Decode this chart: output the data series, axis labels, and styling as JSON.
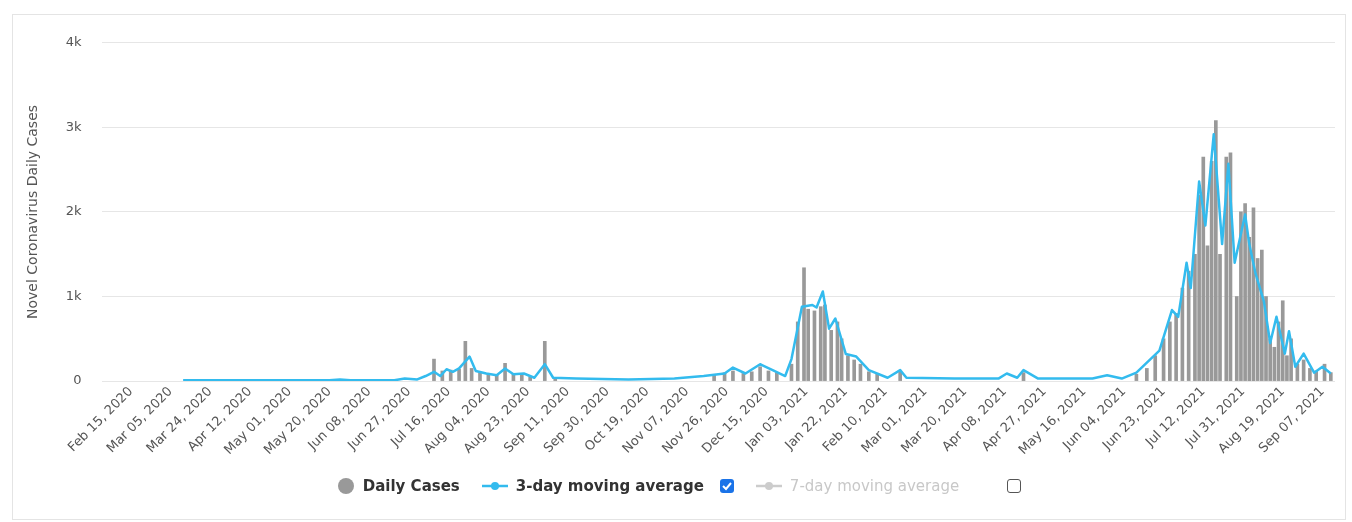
{
  "chart_data": {
    "type": "bar",
    "ylabel": "Novel Coronavirus Daily Cases",
    "xlim": [
      "2020-02-01",
      "2021-09-13"
    ],
    "xticks": [
      {
        "value": "2020-02-15",
        "label": "Feb 15, 2020"
      },
      {
        "value": "2020-03-05",
        "label": "Mar 05, 2020"
      },
      {
        "value": "2020-03-24",
        "label": "Mar 24, 2020"
      },
      {
        "value": "2020-04-12",
        "label": "Apr 12, 2020"
      },
      {
        "value": "2020-05-01",
        "label": "May 01, 2020"
      },
      {
        "value": "2020-05-20",
        "label": "May 20, 2020"
      },
      {
        "value": "2020-06-08",
        "label": "Jun 08, 2020"
      },
      {
        "value": "2020-06-27",
        "label": "Jun 27, 2020"
      },
      {
        "value": "2020-07-16",
        "label": "Jul 16, 2020"
      },
      {
        "value": "2020-08-04",
        "label": "Aug 04, 2020"
      },
      {
        "value": "2020-08-23",
        "label": "Aug 23, 2020"
      },
      {
        "value": "2020-09-11",
        "label": "Sep 11, 2020"
      },
      {
        "value": "2020-09-30",
        "label": "Sep 30, 2020"
      },
      {
        "value": "2020-10-19",
        "label": "Oct 19, 2020"
      },
      {
        "value": "2020-11-07",
        "label": "Nov 07, 2020"
      },
      {
        "value": "2020-11-26",
        "label": "Nov 26, 2020"
      },
      {
        "value": "2020-12-15",
        "label": "Dec 15, 2020"
      },
      {
        "value": "2021-01-03",
        "label": "Jan 03, 2021"
      },
      {
        "value": "2021-01-22",
        "label": "Jan 22, 2021"
      },
      {
        "value": "2021-02-10",
        "label": "Feb 10, 2021"
      },
      {
        "value": "2021-03-01",
        "label": "Mar 01, 2021"
      },
      {
        "value": "2021-03-20",
        "label": "Mar 20, 2021"
      },
      {
        "value": "2021-04-08",
        "label": "Apr 08, 2021"
      },
      {
        "value": "2021-04-27",
        "label": "Apr 27, 2021"
      },
      {
        "value": "2021-05-16",
        "label": "May 16, 2021"
      },
      {
        "value": "2021-06-04",
        "label": "Jun 04, 2021"
      },
      {
        "value": "2021-06-23",
        "label": "Jun 23, 2021"
      },
      {
        "value": "2021-07-12",
        "label": "Jul 12, 2021"
      },
      {
        "value": "2021-07-31",
        "label": "Jul 31, 2021"
      },
      {
        "value": "2021-08-19",
        "label": "Aug 19, 2021"
      },
      {
        "value": "2021-09-07",
        "label": "Sep 07, 2021"
      }
    ],
    "ylim": [
      0,
      4000
    ],
    "yticks": [
      0,
      {
        "value": 1000,
        "label": "1k"
      },
      {
        "value": 2000,
        "label": "2k"
      },
      {
        "value": 3000,
        "label": "3k"
      },
      {
        "value": 4000,
        "label": "4k"
      }
    ],
    "grid": "y",
    "legend": "bottom",
    "marker": "none",
    "series": [
      {
        "name": "Daily Cases",
        "color": "#999999",
        "x": [
          "2020-07-09",
          "2020-07-13",
          "2020-07-17",
          "2020-07-21",
          "2020-07-24",
          "2020-07-27",
          "2020-07-31",
          "2020-08-04",
          "2020-08-08",
          "2020-08-12",
          "2020-08-16",
          "2020-08-20",
          "2020-08-24",
          "2020-08-31",
          "2020-09-05",
          "2020-11-20",
          "2020-11-25",
          "2020-11-29",
          "2020-12-04",
          "2020-12-08",
          "2020-12-12",
          "2020-12-16",
          "2020-12-20",
          "2020-12-27",
          "2020-12-30",
          "2021-01-02",
          "2021-01-04",
          "2021-01-07",
          "2021-01-10",
          "2021-01-12",
          "2021-01-15",
          "2021-01-18",
          "2021-01-20",
          "2021-01-23",
          "2021-01-26",
          "2021-01-29",
          "2021-02-02",
          "2021-02-06",
          "2021-02-17",
          "2021-04-17",
          "2021-06-10",
          "2021-06-15",
          "2021-06-19",
          "2021-06-23",
          "2021-06-26",
          "2021-06-29",
          "2021-07-02",
          "2021-07-05",
          "2021-07-08",
          "2021-07-10",
          "2021-07-12",
          "2021-07-14",
          "2021-07-16",
          "2021-07-18",
          "2021-07-20",
          "2021-07-23",
          "2021-07-25",
          "2021-07-28",
          "2021-07-30",
          "2021-08-01",
          "2021-08-03",
          "2021-08-05",
          "2021-08-07",
          "2021-08-09",
          "2021-08-11",
          "2021-08-13",
          "2021-08-15",
          "2021-08-17",
          "2021-08-19",
          "2021-08-21",
          "2021-08-23",
          "2021-08-26",
          "2021-08-29",
          "2021-09-01",
          "2021-09-04",
          "2021-09-08",
          "2021-09-11"
        ],
        "values": [
          260,
          120,
          130,
          140,
          470,
          150,
          100,
          90,
          80,
          210,
          90,
          80,
          50,
          470,
          30,
          80,
          100,
          120,
          90,
          110,
          170,
          120,
          100,
          200,
          700,
          1340,
          850,
          830,
          880,
          900,
          600,
          700,
          500,
          300,
          250,
          200,
          110,
          80,
          110,
          100,
          80,
          150,
          300,
          500,
          700,
          800,
          1100,
          1300,
          1500,
          2200,
          2650,
          1600,
          2600,
          3080,
          1500,
          2650,
          2700,
          1000,
          2000,
          2100,
          1700,
          2050,
          1450,
          1550,
          1000,
          500,
          400,
          700,
          950,
          300,
          500,
          200,
          250,
          150,
          120,
          200,
          100
        ]
      },
      {
        "name": "3-day moving average",
        "type": "line",
        "color": "#33bbee",
        "x": [
          "2020-03-11",
          "2020-04-15",
          "2020-05-20",
          "2020-05-25",
          "2020-05-30",
          "2020-06-20",
          "2020-06-25",
          "2020-07-01",
          "2020-07-05",
          "2020-07-09",
          "2020-07-12",
          "2020-07-15",
          "2020-07-18",
          "2020-07-21",
          "2020-07-26",
          "2020-07-29",
          "2020-08-03",
          "2020-08-08",
          "2020-08-12",
          "2020-08-16",
          "2020-08-21",
          "2020-08-26",
          "2020-08-31",
          "2020-09-04",
          "2020-09-15",
          "2020-10-10",
          "2020-11-01",
          "2020-11-15",
          "2020-11-25",
          "2020-11-29",
          "2020-12-05",
          "2020-12-12",
          "2020-12-18",
          "2020-12-24",
          "2020-12-27",
          "2021-01-01",
          "2021-01-06",
          "2021-01-08",
          "2021-01-11",
          "2021-01-14",
          "2021-01-17",
          "2021-01-22",
          "2021-01-27",
          "2021-02-02",
          "2021-02-11",
          "2021-02-17",
          "2021-02-20",
          "2021-03-15",
          "2021-04-05",
          "2021-04-09",
          "2021-04-14",
          "2021-04-17",
          "2021-04-24",
          "2021-05-20",
          "2021-05-27",
          "2021-06-03",
          "2021-06-10",
          "2021-06-21",
          "2021-06-27",
          "2021-06-30",
          "2021-07-04",
          "2021-07-06",
          "2021-07-10",
          "2021-07-13",
          "2021-07-17",
          "2021-07-21",
          "2021-07-24",
          "2021-07-27",
          "2021-08-01",
          "2021-08-03",
          "2021-08-06",
          "2021-08-10",
          "2021-08-13",
          "2021-08-16",
          "2021-08-20",
          "2021-08-22",
          "2021-08-25",
          "2021-08-29",
          "2021-09-03",
          "2021-09-07",
          "2021-09-11"
        ],
        "values": [
          10,
          10,
          10,
          20,
          10,
          10,
          30,
          20,
          60,
          110,
          60,
          140,
          110,
          150,
          290,
          120,
          90,
          70,
          150,
          80,
          90,
          40,
          200,
          40,
          30,
          20,
          30,
          60,
          90,
          160,
          90,
          200,
          130,
          60,
          260,
          880,
          900,
          870,
          1060,
          620,
          740,
          320,
          290,
          130,
          40,
          130,
          40,
          30,
          30,
          90,
          40,
          130,
          30,
          30,
          70,
          30,
          100,
          360,
          840,
          760,
          1400,
          1100,
          2360,
          1840,
          2920,
          1620,
          2570,
          1400,
          1970,
          1620,
          1270,
          940,
          450,
          760,
          325,
          590,
          170,
          325,
          100,
          170,
          90
        ]
      },
      {
        "name": "7-day moving average",
        "type": "line",
        "color": "#cccccc"
      }
    ]
  }
}
